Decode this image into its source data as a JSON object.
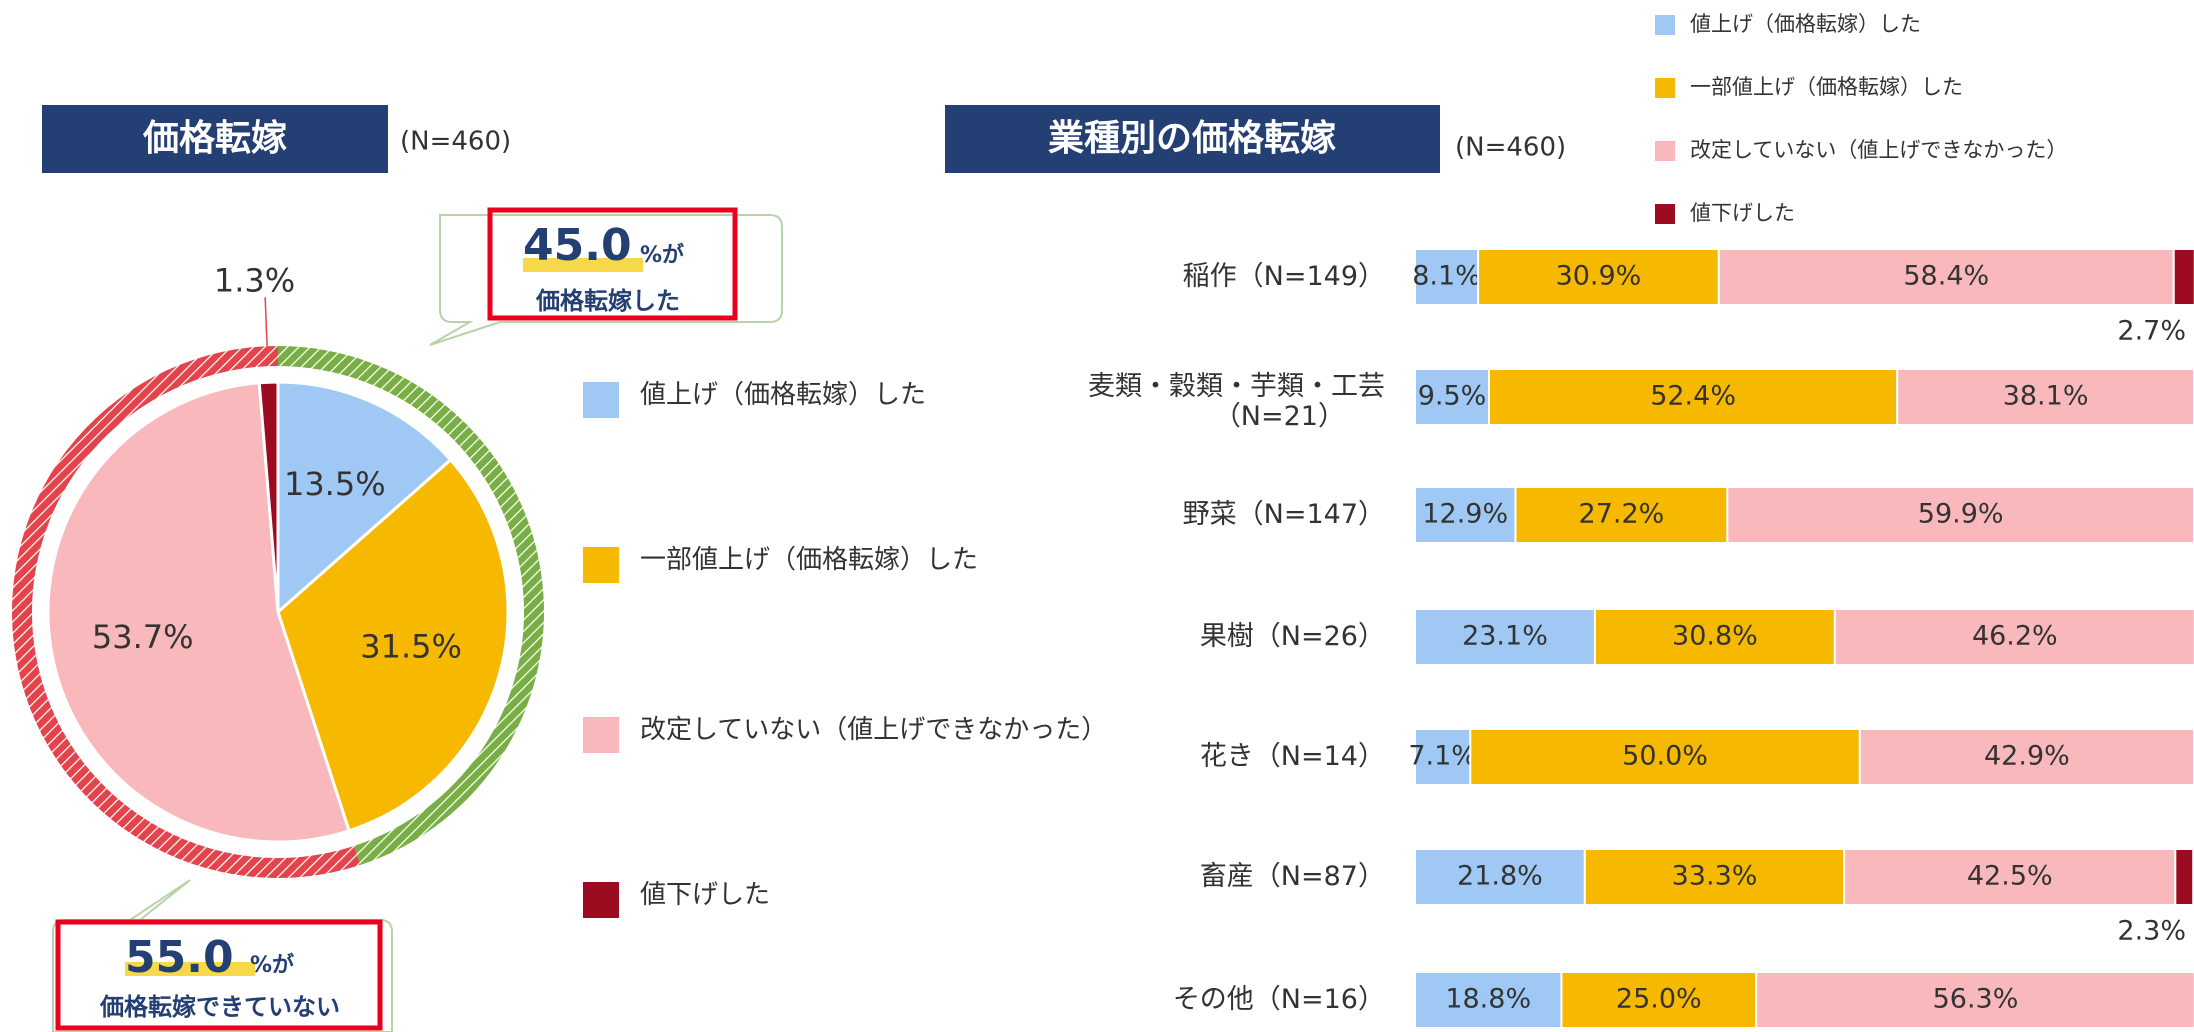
{
  "chart_data": [
    {
      "type": "pie",
      "title": "価格転嫁",
      "subtitle": "(N=460)",
      "categories": [
        "値上げ（価格転嫁）した",
        "一部値上げ（価格転嫁）した",
        "改定していない（値上げできなかった）",
        "値下げした"
      ],
      "values": [
        13.5,
        31.5,
        53.7,
        1.3
      ],
      "value_labels": [
        "13.5%",
        "31.5%",
        "53.7%",
        "1.3%"
      ],
      "colors": [
        "#9fc9f4",
        "#f6b900",
        "#f8b8bc",
        "#9c0b20"
      ],
      "annotations": [
        {
          "value": 45.0,
          "label": "45.0",
          "unit": "%が",
          "text": "価格転嫁した",
          "color": "#78ae43"
        },
        {
          "value": 55.0,
          "label": "55.0",
          "unit": "%が",
          "text": "価格転嫁できていない",
          "color": "#e3444c"
        }
      ]
    },
    {
      "type": "stacked_bar",
      "title": "業種別の価格転嫁",
      "subtitle": "(N=460)",
      "categories": [
        "稲作（N=149）",
        "麦類・穀類・芋類・工芸\n（N=21）",
        "野菜（N=147）",
        "果樹（N=26）",
        "花き（N=14）",
        "畜産（N=87）",
        "その他（N=16）"
      ],
      "xlim": [
        0,
        100
      ],
      "series": [
        {
          "name": "値上げ（価格転嫁）した",
          "color": "#9fc9f4",
          "values": [
            8.1,
            9.5,
            12.9,
            23.1,
            7.1,
            21.8,
            18.8
          ],
          "value_labels": [
            "8.1%",
            "9.5%",
            "12.9%",
            "23.1%",
            "7.1%",
            "21.8%",
            "18.8%"
          ]
        },
        {
          "name": "一部値上げ（価格転嫁）した",
          "color": "#f6b900",
          "values": [
            30.9,
            52.4,
            27.2,
            30.8,
            50.0,
            33.3,
            25.0
          ],
          "value_labels": [
            "30.9%",
            "52.4%",
            "27.2%",
            "30.8%",
            "50.0%",
            "33.3%",
            "25.0%"
          ]
        },
        {
          "name": "改定していない（値上げできなかった）",
          "color": "#f8b8bc",
          "values": [
            58.4,
            38.1,
            59.9,
            46.2,
            42.9,
            42.5,
            56.3
          ],
          "value_labels": [
            "58.4%",
            "38.1%",
            "59.9%",
            "46.2%",
            "42.9%",
            "42.5%",
            "56.3%"
          ]
        },
        {
          "name": "値下げした",
          "color": "#9c0b20",
          "values": [
            2.7,
            0,
            0,
            0,
            0,
            2.3,
            0
          ],
          "value_labels": [
            "2.7%",
            null,
            null,
            null,
            null,
            "2.3%",
            null
          ]
        }
      ]
    }
  ]
}
